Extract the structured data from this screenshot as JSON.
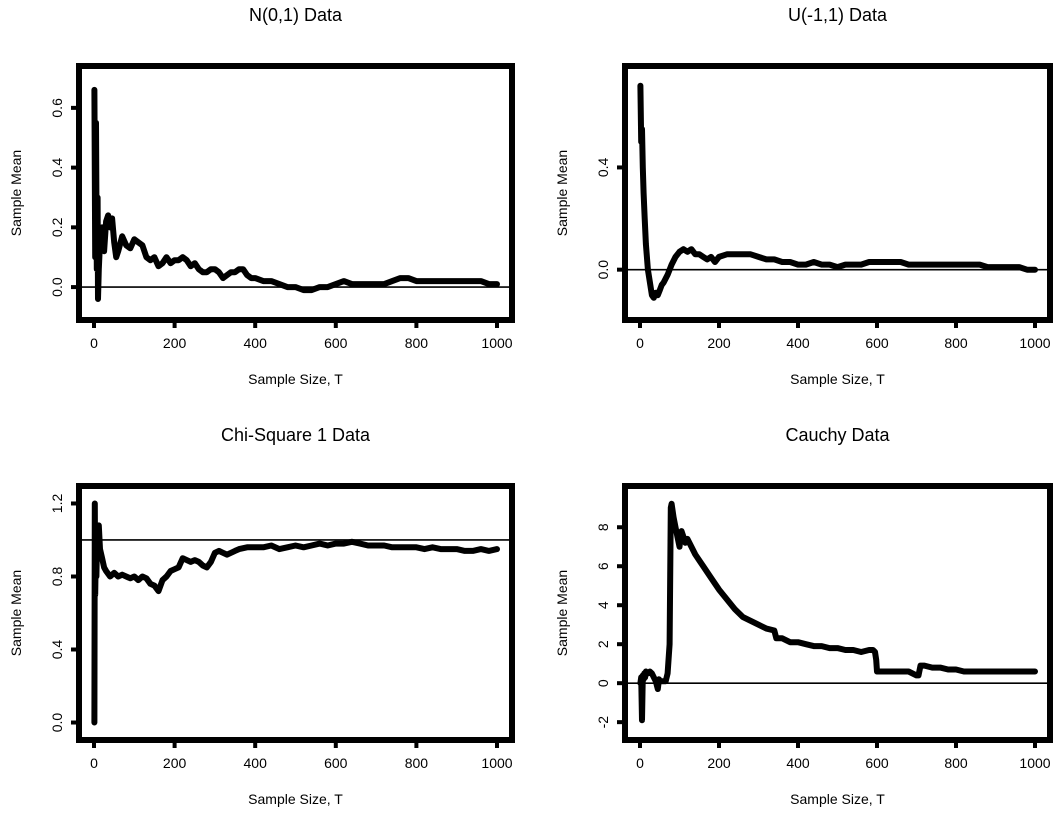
{
  "chart_data": [
    {
      "type": "line",
      "title": "N(0,1) Data",
      "xlabel": "Sample Size, T",
      "ylabel": "Sample Mean",
      "xlim": [
        0,
        1000
      ],
      "ylim": [
        -0.07,
        0.7
      ],
      "xticks": [
        "0",
        "200",
        "400",
        "600",
        "800",
        "1000"
      ],
      "yticks": [
        "0.0",
        "0.2",
        "0.4",
        "0.6"
      ],
      "reference_line_y": 0,
      "series": [
        {
          "x": [
            1,
            3,
            5,
            7,
            9,
            10,
            12,
            15,
            20,
            25,
            30,
            35,
            40,
            45,
            50,
            55,
            60,
            70,
            80,
            90,
            100,
            110,
            120,
            130,
            140,
            150,
            160,
            170,
            180,
            190,
            200,
            210,
            220,
            230,
            240,
            250,
            260,
            270,
            280,
            290,
            300,
            310,
            320,
            330,
            340,
            350,
            360,
            370,
            380,
            390,
            400,
            420,
            440,
            460,
            480,
            500,
            520,
            540,
            560,
            580,
            600,
            620,
            640,
            660,
            680,
            700,
            720,
            740,
            760,
            780,
            800,
            820,
            840,
            860,
            880,
            900,
            920,
            940,
            960,
            980,
            1000
          ],
          "y": [
            0.66,
            0.1,
            0.55,
            0.06,
            0.3,
            -0.04,
            0.06,
            0.15,
            0.2,
            0.12,
            0.22,
            0.24,
            0.2,
            0.23,
            0.15,
            0.1,
            0.12,
            0.17,
            0.14,
            0.13,
            0.16,
            0.15,
            0.14,
            0.1,
            0.09,
            0.1,
            0.07,
            0.08,
            0.1,
            0.08,
            0.09,
            0.09,
            0.1,
            0.09,
            0.07,
            0.08,
            0.06,
            0.05,
            0.05,
            0.06,
            0.06,
            0.05,
            0.03,
            0.04,
            0.05,
            0.05,
            0.06,
            0.06,
            0.04,
            0.03,
            0.03,
            0.02,
            0.02,
            0.01,
            0.0,
            0.0,
            -0.01,
            -0.01,
            0.0,
            0.0,
            0.01,
            0.02,
            0.01,
            0.01,
            0.01,
            0.01,
            0.01,
            0.02,
            0.03,
            0.03,
            0.02,
            0.02,
            0.02,
            0.02,
            0.02,
            0.02,
            0.02,
            0.02,
            0.02,
            0.01,
            0.01
          ]
        }
      ]
    },
    {
      "type": "line",
      "title": "U(-1,1) Data",
      "xlabel": "Sample Size, T",
      "ylabel": "Sample Mean",
      "xlim": [
        0,
        1000
      ],
      "ylim": [
        -0.15,
        0.75
      ],
      "xticks": [
        "0",
        "200",
        "400",
        "600",
        "800",
        "1000"
      ],
      "yticks": [
        "0.0",
        "0.4"
      ],
      "reference_line_y": 0,
      "series": [
        {
          "x": [
            1,
            3,
            5,
            7,
            9,
            12,
            15,
            20,
            25,
            30,
            35,
            40,
            45,
            50,
            55,
            60,
            70,
            80,
            90,
            100,
            110,
            120,
            130,
            140,
            150,
            160,
            170,
            180,
            190,
            200,
            220,
            240,
            260,
            280,
            300,
            320,
            340,
            360,
            380,
            400,
            420,
            440,
            460,
            480,
            500,
            520,
            540,
            560,
            580,
            600,
            620,
            640,
            660,
            680,
            700,
            720,
            740,
            760,
            780,
            800,
            820,
            840,
            860,
            880,
            900,
            920,
            940,
            960,
            980,
            1000
          ],
          "y": [
            0.72,
            0.5,
            0.55,
            0.4,
            0.3,
            0.2,
            0.1,
            0.0,
            -0.05,
            -0.1,
            -0.11,
            -0.09,
            -0.1,
            -0.08,
            -0.06,
            -0.05,
            -0.02,
            0.02,
            0.05,
            0.07,
            0.08,
            0.07,
            0.08,
            0.06,
            0.06,
            0.05,
            0.04,
            0.05,
            0.03,
            0.05,
            0.06,
            0.06,
            0.06,
            0.06,
            0.05,
            0.04,
            0.04,
            0.03,
            0.03,
            0.02,
            0.02,
            0.03,
            0.02,
            0.02,
            0.01,
            0.02,
            0.02,
            0.02,
            0.03,
            0.03,
            0.03,
            0.03,
            0.03,
            0.02,
            0.02,
            0.02,
            0.02,
            0.02,
            0.02,
            0.02,
            0.02,
            0.02,
            0.02,
            0.01,
            0.01,
            0.01,
            0.01,
            0.01,
            0.0,
            0.0
          ]
        }
      ]
    },
    {
      "type": "line",
      "title": "Chi-Square 1 Data",
      "xlabel": "Sample Size, T",
      "ylabel": "Sample Mean",
      "xlim": [
        0,
        1000
      ],
      "ylim": [
        -0.03,
        1.23
      ],
      "xticks": [
        "0",
        "200",
        "400",
        "600",
        "800",
        "1000"
      ],
      "yticks": [
        "0.0",
        "0.4",
        "0.8",
        "1.2"
      ],
      "reference_line_y": 1,
      "series": [
        {
          "x": [
            1,
            2,
            3,
            4,
            5,
            6,
            8,
            10,
            12,
            15,
            20,
            25,
            30,
            40,
            50,
            60,
            70,
            80,
            90,
            100,
            110,
            120,
            130,
            140,
            150,
            160,
            170,
            180,
            190,
            200,
            210,
            220,
            230,
            240,
            250,
            260,
            270,
            280,
            290,
            300,
            310,
            320,
            330,
            340,
            350,
            360,
            380,
            400,
            420,
            440,
            460,
            480,
            500,
            520,
            540,
            560,
            580,
            600,
            620,
            640,
            660,
            680,
            700,
            720,
            740,
            760,
            780,
            800,
            820,
            840,
            860,
            880,
            900,
            920,
            940,
            960,
            980,
            1000
          ],
          "y": [
            0.0,
            1.2,
            0.7,
            0.85,
            0.95,
            0.8,
            1.05,
            0.95,
            1.08,
            0.95,
            0.9,
            0.85,
            0.83,
            0.8,
            0.82,
            0.8,
            0.81,
            0.8,
            0.79,
            0.8,
            0.78,
            0.8,
            0.79,
            0.76,
            0.75,
            0.72,
            0.78,
            0.8,
            0.83,
            0.84,
            0.85,
            0.9,
            0.89,
            0.88,
            0.89,
            0.88,
            0.86,
            0.85,
            0.88,
            0.93,
            0.94,
            0.93,
            0.92,
            0.93,
            0.94,
            0.95,
            0.96,
            0.96,
            0.96,
            0.97,
            0.95,
            0.96,
            0.97,
            0.96,
            0.97,
            0.98,
            0.97,
            0.98,
            0.98,
            0.99,
            0.98,
            0.97,
            0.97,
            0.97,
            0.96,
            0.96,
            0.96,
            0.96,
            0.95,
            0.96,
            0.95,
            0.95,
            0.95,
            0.94,
            0.94,
            0.95,
            0.94,
            0.95
          ]
        }
      ]
    },
    {
      "type": "line",
      "title": "Cauchy Data",
      "xlabel": "Sample Size, T",
      "ylabel": "Sample Mean",
      "xlim": [
        0,
        1000
      ],
      "ylim": [
        -2.3,
        9.5
      ],
      "xticks": [
        "0",
        "200",
        "400",
        "600",
        "800",
        "1000"
      ],
      "yticks": [
        "-2",
        "0",
        "2",
        "4",
        "6",
        "8"
      ],
      "reference_line_y": 0,
      "series": [
        {
          "x": [
            1,
            3,
            5,
            7,
            9,
            11,
            13,
            15,
            20,
            25,
            30,
            35,
            40,
            45,
            48,
            50,
            55,
            60,
            65,
            70,
            75,
            78,
            80,
            85,
            90,
            95,
            100,
            105,
            110,
            115,
            120,
            130,
            140,
            150,
            160,
            180,
            200,
            220,
            240,
            260,
            280,
            300,
            320,
            340,
            345,
            350,
            360,
            380,
            400,
            420,
            440,
            460,
            480,
            500,
            520,
            540,
            560,
            580,
            590,
            595,
            598,
            600,
            620,
            640,
            660,
            680,
            700,
            705,
            710,
            715,
            720,
            740,
            760,
            780,
            800,
            820,
            840,
            860,
            880,
            900,
            920,
            940,
            960,
            980,
            1000
          ],
          "y": [
            0.0,
            0.3,
            -1.9,
            0.4,
            0.2,
            0.5,
            0.3,
            0.6,
            0.5,
            0.6,
            0.5,
            0.3,
            0.1,
            -0.3,
            0.2,
            0.1,
            0.1,
            0.1,
            0.1,
            0.5,
            2.0,
            9.0,
            9.2,
            8.5,
            8.0,
            7.5,
            7.0,
            7.8,
            7.5,
            7.2,
            7.4,
            7.0,
            6.6,
            6.3,
            6.0,
            5.4,
            4.8,
            4.3,
            3.8,
            3.4,
            3.2,
            3.0,
            2.8,
            2.7,
            2.3,
            2.3,
            2.3,
            2.1,
            2.1,
            2.0,
            1.9,
            1.9,
            1.8,
            1.8,
            1.7,
            1.7,
            1.6,
            1.7,
            1.7,
            1.6,
            1.2,
            0.6,
            0.6,
            0.6,
            0.6,
            0.6,
            0.4,
            0.4,
            0.9,
            0.9,
            0.9,
            0.8,
            0.8,
            0.7,
            0.7,
            0.6,
            0.6,
            0.6,
            0.6,
            0.6,
            0.6,
            0.6,
            0.6,
            0.6,
            0.6
          ]
        }
      ]
    }
  ]
}
